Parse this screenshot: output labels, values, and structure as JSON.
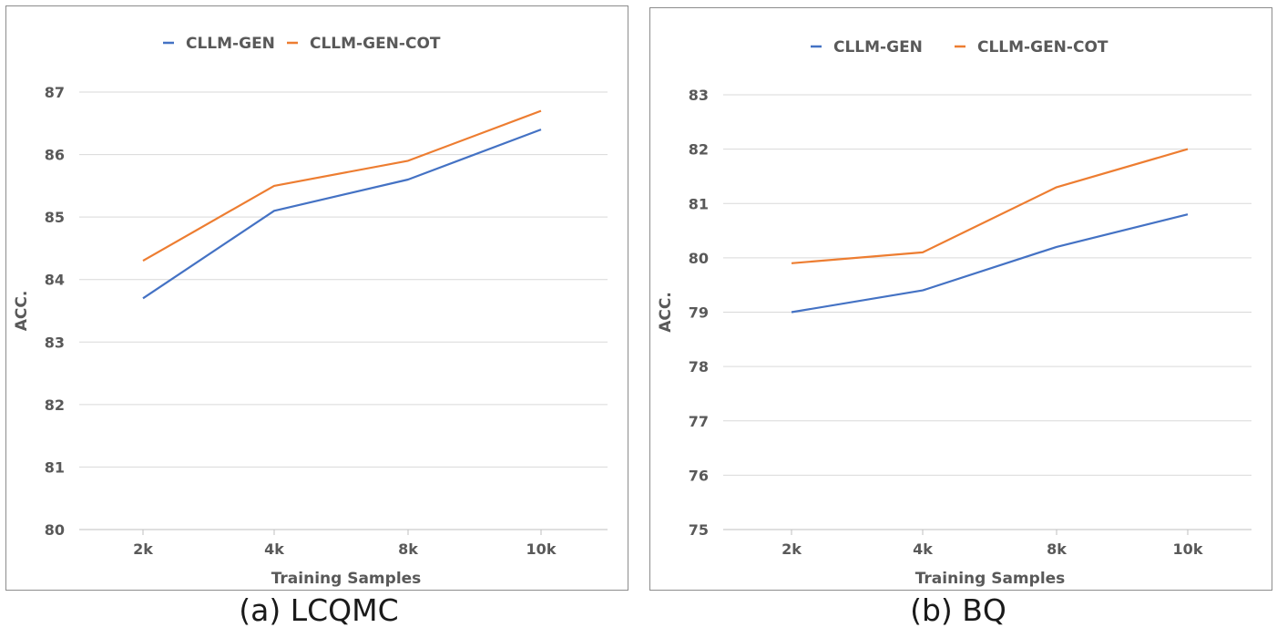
{
  "chart_data": [
    {
      "type": "line",
      "caption": "(a) LCQMC",
      "categories": [
        "2k",
        "4k",
        "8k",
        "10k"
      ],
      "series": [
        {
          "name": "CLLM-GEN",
          "color": "#4472c4",
          "values": [
            83.7,
            85.1,
            85.6,
            86.4
          ]
        },
        {
          "name": "CLLM-GEN-COT",
          "color": "#ed7d31",
          "values": [
            84.3,
            85.5,
            85.9,
            86.7
          ]
        }
      ],
      "ylim": [
        80,
        87
      ],
      "yticks": [
        "80",
        "81",
        "82",
        "83",
        "84",
        "85",
        "86",
        "87"
      ],
      "xlabel": "Training Samples",
      "ylabel": "ACC.",
      "grid": true,
      "legend": "top-center"
    },
    {
      "type": "line",
      "caption": "(b) BQ",
      "categories": [
        "2k",
        "4k",
        "8k",
        "10k"
      ],
      "series": [
        {
          "name": "CLLM-GEN",
          "color": "#4472c4",
          "values": [
            79.0,
            79.4,
            80.2,
            80.8
          ]
        },
        {
          "name": "CLLM-GEN-COT",
          "color": "#ed7d31",
          "values": [
            79.9,
            80.1,
            81.3,
            82.0
          ]
        }
      ],
      "ylim": [
        75,
        83
      ],
      "yticks": [
        "75",
        "76",
        "77",
        "78",
        "79",
        "80",
        "81",
        "82",
        "83"
      ],
      "xlabel": "Training Samples",
      "ylabel": "ACC.",
      "grid": true,
      "legend": "top-center"
    }
  ]
}
